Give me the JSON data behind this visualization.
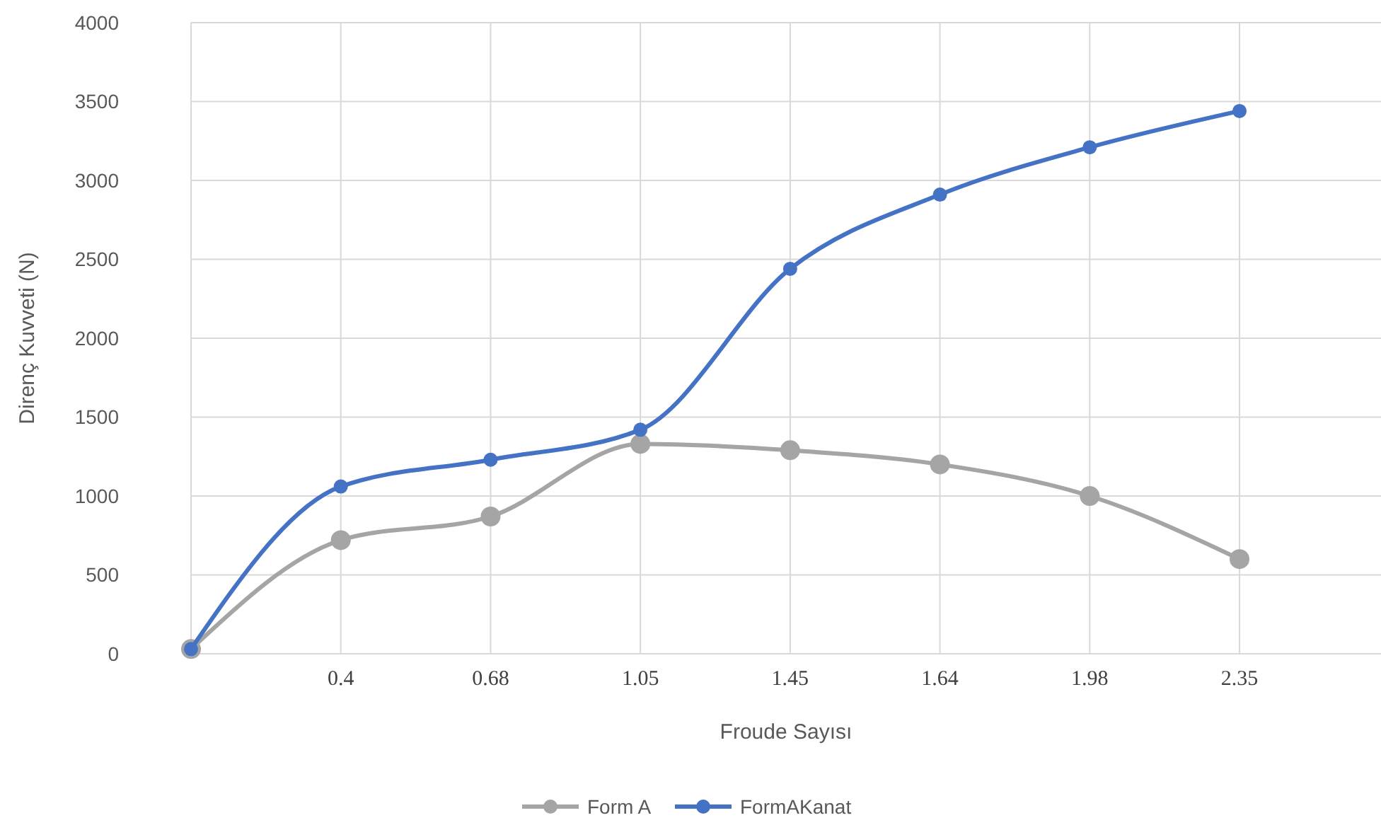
{
  "chart_data": {
    "type": "line",
    "xlabel": "Froude Sayısı",
    "ylabel": "Direnç Kuvveti (N)",
    "categories": [
      null,
      "0.4",
      "0.68",
      "1.05",
      "1.45",
      "1.64",
      "1.98",
      "2.35"
    ],
    "series": [
      {
        "name": "Form A",
        "color": "#a5a5a5",
        "values": [
          30,
          720,
          870,
          1330,
          1290,
          1200,
          1000,
          600
        ]
      },
      {
        "name": "FormAKanat",
        "color": "#4472c4",
        "values": [
          30,
          1060,
          1230,
          1420,
          2440,
          2910,
          3210,
          3440
        ]
      }
    ],
    "ylim": [
      0,
      4000
    ],
    "yticks": [
      0,
      500,
      1000,
      1500,
      2000,
      2500,
      3000,
      3500,
      4000
    ],
    "grid": true,
    "legend": "bottom",
    "marker": "circle",
    "line_style": "solid"
  }
}
